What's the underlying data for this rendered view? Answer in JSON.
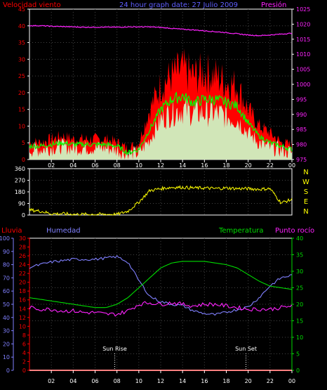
{
  "chart_data": [
    {
      "type": "line",
      "name": "wind-pressure",
      "title": "24 hour graph date: 27 Julio 2009",
      "left_label": "Velocidad viento",
      "right_label": "Presión",
      "left_axis": {
        "min": 0,
        "max": 45,
        "ticks": [
          0,
          5,
          10,
          15,
          20,
          25,
          30,
          35,
          40,
          45
        ]
      },
      "right_axis": {
        "min": 975,
        "max": 1025,
        "ticks": [
          975,
          980,
          985,
          990,
          995,
          1000,
          1005,
          1010,
          1015,
          1020,
          1025
        ]
      },
      "x_axis": {
        "min": 0,
        "max": 24,
        "tick_labels": [
          "02",
          "04",
          "06",
          "08",
          "10",
          "12",
          "14",
          "16",
          "18",
          "20",
          "22",
          "00"
        ]
      },
      "series": [
        {
          "id": "pressure",
          "axis": "right",
          "color": "#ff22ff",
          "x": [
            0,
            1,
            2,
            3,
            4,
            5,
            6,
            7,
            8,
            9,
            10,
            11,
            12,
            13,
            14,
            15,
            16,
            17,
            18,
            19,
            20,
            21,
            22,
            23,
            24
          ],
          "y": [
            1019.5,
            1019.5,
            1019.3,
            1019.2,
            1019.1,
            1019,
            1019,
            1019,
            1019,
            1019.1,
            1019.1,
            1019.1,
            1018.9,
            1018.6,
            1018.3,
            1018.1,
            1017.8,
            1017.5,
            1017.2,
            1016.8,
            1016.4,
            1016.2,
            1016.4,
            1016.7,
            1017
          ]
        },
        {
          "id": "wind-gust",
          "axis": "left",
          "color": "#ff0000",
          "x": [
            0,
            1,
            2,
            3,
            4,
            5,
            6,
            7,
            8,
            9,
            10,
            11,
            12,
            13,
            14,
            15,
            16,
            17,
            18,
            19,
            20,
            21,
            22,
            23,
            24
          ],
          "y": [
            5,
            5,
            6,
            7,
            6,
            6,
            6,
            6,
            5,
            3,
            5,
            15,
            22,
            25,
            27,
            25,
            26,
            25,
            23,
            22,
            15,
            10,
            8,
            5,
            4
          ]
        },
        {
          "id": "wind-mean",
          "axis": "left",
          "color": "#00ff00",
          "x": [
            0,
            1,
            2,
            3,
            4,
            5,
            6,
            7,
            8,
            9,
            10,
            11,
            12,
            13,
            14,
            15,
            16,
            17,
            18,
            19,
            20,
            21,
            22,
            23,
            24
          ],
          "y": [
            4,
            4,
            4.5,
            5,
            4.5,
            4.5,
            4.5,
            4.5,
            4,
            2,
            3,
            9,
            15,
            18,
            19,
            17,
            18,
            18,
            17,
            16,
            11,
            7,
            5,
            4,
            3
          ]
        },
        {
          "id": "wind-speed",
          "axis": "left",
          "color": "#ccffcc",
          "x": [
            0,
            1,
            2,
            3,
            4,
            5,
            6,
            7,
            8,
            9,
            10,
            11,
            12,
            13,
            14,
            15,
            16,
            17,
            18,
            19,
            20,
            21,
            22,
            23,
            24
          ],
          "y": [
            3,
            3,
            3.5,
            4,
            3.5,
            3.5,
            3.5,
            3.5,
            3,
            1.5,
            2,
            6,
            12,
            14,
            15,
            14,
            14,
            14,
            13,
            12,
            8,
            5,
            3.5,
            3,
            2
          ]
        }
      ]
    },
    {
      "type": "line",
      "name": "wind-direction",
      "left_axis": {
        "min": 0,
        "max": 360,
        "ticks": [
          0,
          90,
          180,
          270,
          360
        ]
      },
      "right_labels": [
        "N",
        "W",
        "S",
        "E",
        "N"
      ],
      "x_axis": {
        "min": 0,
        "max": 24
      },
      "series": [
        {
          "id": "direction",
          "axis": "left",
          "color": "#ffff00",
          "x": [
            0,
            1,
            2,
            3,
            4,
            5,
            6,
            7,
            8,
            9,
            10,
            11,
            12,
            13,
            14,
            15,
            16,
            17,
            18,
            19,
            20,
            21,
            22,
            23,
            24
          ],
          "y": [
            40,
            30,
            10,
            10,
            5,
            5,
            5,
            5,
            5,
            30,
            100,
            190,
            205,
            215,
            215,
            210,
            210,
            205,
            210,
            205,
            205,
            200,
            205,
            95,
            120
          ]
        }
      ]
    },
    {
      "type": "line",
      "name": "temp-humidity",
      "labels": {
        "rain": "Lluvia",
        "humidity": "Humedad",
        "temperature": "Temperatura",
        "dewpoint": "Punto rocío"
      },
      "rain_axis": {
        "min": 0,
        "max": 30,
        "ticks": [
          0,
          2,
          4,
          6,
          8,
          10,
          12,
          14,
          16,
          18,
          20,
          22,
          24,
          26,
          28,
          30
        ]
      },
      "humidity_axis": {
        "min": 0,
        "max": 100,
        "ticks": [
          0,
          10,
          20,
          30,
          40,
          50,
          60,
          70,
          80,
          90,
          100
        ]
      },
      "temp_axis": {
        "min": 0,
        "max": 40,
        "ticks": [
          0,
          5,
          10,
          15,
          20,
          25,
          30,
          35,
          40
        ]
      },
      "x_axis": {
        "min": 0,
        "max": 24,
        "tick_labels": [
          "02",
          "04",
          "06",
          "08",
          "10",
          "12",
          "14",
          "16",
          "18",
          "20",
          "22",
          "00"
        ]
      },
      "annotations": [
        {
          "id": "sunrise",
          "label": "Sun Rise",
          "x": 7.8
        },
        {
          "id": "sunset",
          "label": "Sun Set",
          "x": 19.8
        }
      ],
      "series": [
        {
          "id": "humidity",
          "axis": "humidity",
          "color": "#8080ff",
          "x": [
            0,
            1,
            2,
            3,
            4,
            5,
            6,
            7,
            8,
            9,
            10,
            11,
            12,
            13,
            14,
            15,
            16,
            17,
            18,
            19,
            20,
            21,
            22,
            23,
            24
          ],
          "y": [
            78,
            80,
            82,
            83,
            84,
            84,
            84,
            85,
            86,
            82,
            68,
            56,
            52,
            50,
            49,
            45,
            43,
            42,
            44,
            46,
            48,
            55,
            64,
            70,
            72
          ]
        },
        {
          "id": "temperature",
          "axis": "temp",
          "color": "#00dd00",
          "x": [
            0,
            1,
            2,
            3,
            4,
            5,
            6,
            7,
            8,
            9,
            10,
            11,
            12,
            13,
            14,
            15,
            16,
            17,
            18,
            19,
            20,
            21,
            22,
            23,
            24
          ],
          "y": [
            22,
            21.5,
            21,
            20.5,
            20,
            19.5,
            19,
            19,
            20,
            22,
            25,
            28,
            31,
            32.5,
            33,
            33,
            33,
            32.5,
            32,
            31,
            29,
            27,
            25.5,
            25,
            24.5
          ]
        },
        {
          "id": "dewpoint",
          "axis": "temp",
          "color": "#ff22ff",
          "x": [
            0,
            1,
            2,
            3,
            4,
            5,
            6,
            7,
            8,
            9,
            10,
            11,
            12,
            13,
            14,
            15,
            16,
            17,
            18,
            19,
            20,
            21,
            22,
            23,
            24
          ],
          "y": [
            19,
            18.5,
            18.5,
            18,
            18,
            17.5,
            17.5,
            17,
            17,
            18,
            20,
            20.5,
            20,
            20.5,
            20,
            19.5,
            20,
            20,
            19.5,
            19,
            18.5,
            18.5,
            18.5,
            19,
            19.5
          ]
        },
        {
          "id": "rain",
          "axis": "rain",
          "color": "#ff0000",
          "x": [
            0,
            24
          ],
          "y": [
            0,
            0
          ]
        }
      ]
    }
  ]
}
